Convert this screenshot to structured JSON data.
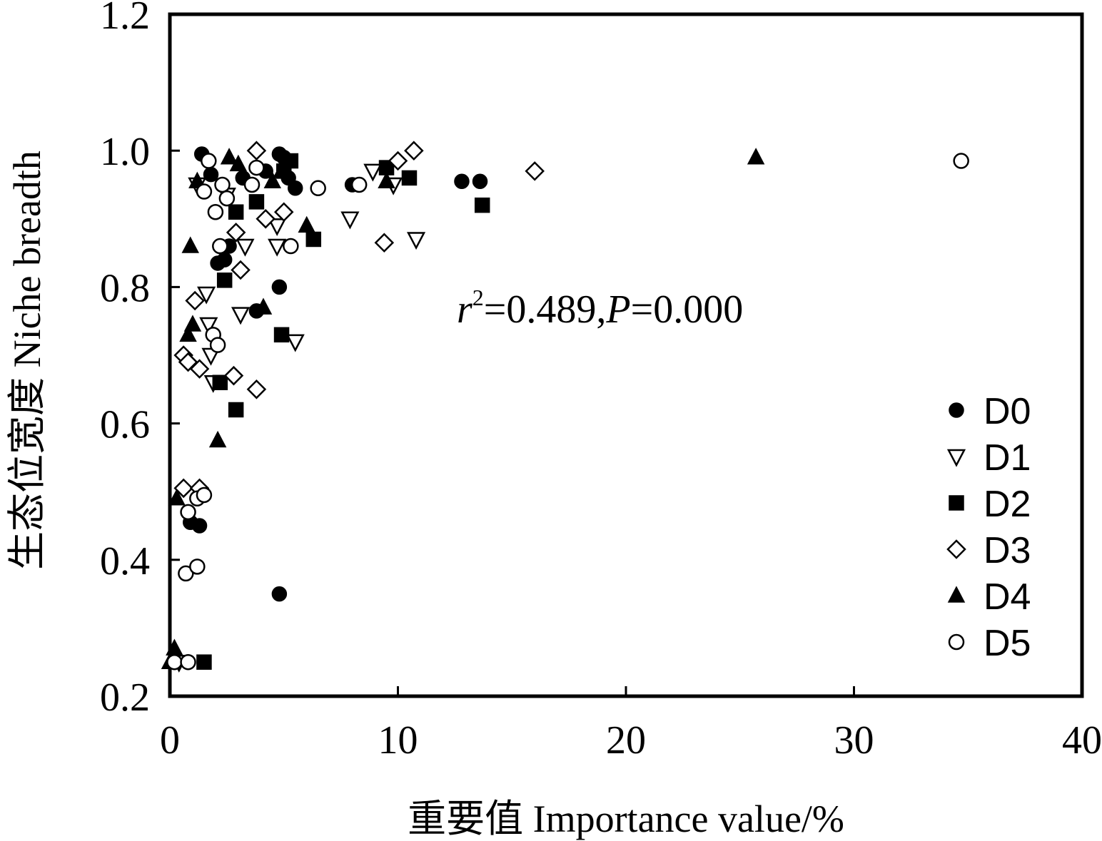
{
  "chart_data": {
    "type": "scatter",
    "xlabel": "重要值 Importance value/%",
    "ylabel": "生态位宽度 Niche breadth",
    "xlim": [
      0,
      40
    ],
    "ylim": [
      0.2,
      1.2
    ],
    "x_ticks": [
      "0",
      "10",
      "20",
      "30",
      "40"
    ],
    "y_ticks": [
      "0.2",
      "0.4",
      "0.6",
      "0.8",
      "1.0",
      "1.2"
    ],
    "annotation": {
      "r": "r",
      "sup": "2",
      "mid": "=0.489,",
      "p": "P",
      "tail": "=0.000"
    },
    "legend_position": "right",
    "grid": false,
    "series": [
      {
        "name": "D0",
        "marker": "circle-filled",
        "points": [
          [
            1.4,
            0.995
          ],
          [
            1.8,
            0.965
          ],
          [
            2.1,
            0.835
          ],
          [
            2.4,
            0.84
          ],
          [
            2.6,
            0.86
          ],
          [
            3.2,
            0.96
          ],
          [
            3.8,
            0.765
          ],
          [
            4.2,
            0.97
          ],
          [
            4.8,
            0.995
          ],
          [
            5.0,
            0.99
          ],
          [
            5.2,
            0.96
          ],
          [
            5.5,
            0.945
          ],
          [
            4.8,
            0.8
          ],
          [
            8.0,
            0.95
          ],
          [
            12.8,
            0.955
          ],
          [
            13.6,
            0.955
          ],
          [
            4.8,
            0.35
          ],
          [
            0.9,
            0.455
          ],
          [
            1.3,
            0.45
          ]
        ]
      },
      {
        "name": "D1",
        "marker": "triangle-down-open",
        "points": [
          [
            1.2,
            0.95
          ],
          [
            1.6,
            0.79
          ],
          [
            1.7,
            0.745
          ],
          [
            1.8,
            0.7
          ],
          [
            1.9,
            0.66
          ],
          [
            2.5,
            0.935
          ],
          [
            3.1,
            0.76
          ],
          [
            3.3,
            0.86
          ],
          [
            4.7,
            0.89
          ],
          [
            4.7,
            0.86
          ],
          [
            5.5,
            0.72
          ],
          [
            7.9,
            0.9
          ],
          [
            8.9,
            0.97
          ],
          [
            9.8,
            0.95
          ],
          [
            10.8,
            0.87
          ],
          [
            0.4,
            0.25
          ]
        ]
      },
      {
        "name": "D2",
        "marker": "square-filled",
        "points": [
          [
            2.2,
            0.66
          ],
          [
            2.4,
            0.81
          ],
          [
            2.9,
            0.62
          ],
          [
            2.9,
            0.91
          ],
          [
            3.8,
            0.925
          ],
          [
            4.9,
            0.73
          ],
          [
            5.3,
            0.985
          ],
          [
            5.0,
            0.97
          ],
          [
            6.3,
            0.87
          ],
          [
            9.5,
            0.975
          ],
          [
            10.5,
            0.96
          ],
          [
            13.7,
            0.92
          ],
          [
            1.5,
            0.25
          ]
        ]
      },
      {
        "name": "D3",
        "marker": "diamond-open",
        "points": [
          [
            0.6,
            0.7
          ],
          [
            0.8,
            0.69
          ],
          [
            1.1,
            0.78
          ],
          [
            1.3,
            0.68
          ],
          [
            2.8,
            0.67
          ],
          [
            2.9,
            0.88
          ],
          [
            3.1,
            0.825
          ],
          [
            3.8,
            1.0
          ],
          [
            3.8,
            0.65
          ],
          [
            4.2,
            0.9
          ],
          [
            5.0,
            0.91
          ],
          [
            9.4,
            0.865
          ],
          [
            10.0,
            0.985
          ],
          [
            10.7,
            1.0
          ],
          [
            16.0,
            0.97
          ],
          [
            0.6,
            0.505
          ],
          [
            1.3,
            0.505
          ]
        ]
      },
      {
        "name": "D4",
        "marker": "triangle-up-filled",
        "points": [
          [
            0.8,
            0.73
          ],
          [
            0.9,
            0.86
          ],
          [
            1.0,
            0.745
          ],
          [
            1.2,
            0.955
          ],
          [
            2.1,
            0.575
          ],
          [
            2.6,
            0.99
          ],
          [
            3.0,
            0.98
          ],
          [
            4.1,
            0.77
          ],
          [
            4.5,
            0.955
          ],
          [
            4.9,
            0.97
          ],
          [
            6.0,
            0.89
          ],
          [
            9.5,
            0.955
          ],
          [
            25.7,
            0.99
          ],
          [
            0.2,
            0.27
          ],
          [
            0.0,
            0.25
          ],
          [
            0.3,
            0.49
          ]
        ]
      },
      {
        "name": "D5",
        "marker": "circle-open",
        "points": [
          [
            1.5,
            0.94
          ],
          [
            1.7,
            0.985
          ],
          [
            1.9,
            0.73
          ],
          [
            2.0,
            0.91
          ],
          [
            2.1,
            0.715
          ],
          [
            2.2,
            0.86
          ],
          [
            2.3,
            0.95
          ],
          [
            2.5,
            0.93
          ],
          [
            3.6,
            0.95
          ],
          [
            3.8,
            0.975
          ],
          [
            5.3,
            0.86
          ],
          [
            6.5,
            0.945
          ],
          [
            8.3,
            0.95
          ],
          [
            34.7,
            0.985
          ],
          [
            0.8,
            0.47
          ],
          [
            1.2,
            0.49
          ],
          [
            1.5,
            0.495
          ],
          [
            0.7,
            0.38
          ],
          [
            1.2,
            0.39
          ],
          [
            0.2,
            0.25
          ],
          [
            0.8,
            0.25
          ]
        ]
      }
    ]
  }
}
